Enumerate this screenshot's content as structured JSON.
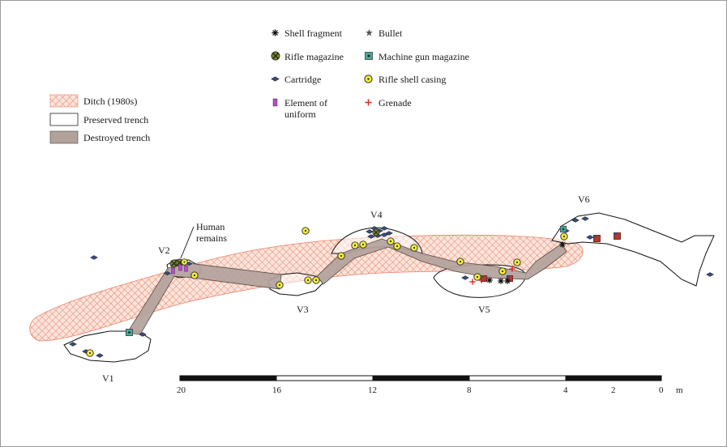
{
  "legend_areas": [
    {
      "key": "ditch",
      "label": "Ditch (1980s)"
    },
    {
      "key": "preserved",
      "label": "Preserved trench"
    },
    {
      "key": "destroyed",
      "label": "Destroyed trench"
    }
  ],
  "legend_finds": {
    "shell_fragment": "Shell fragment",
    "bullet": "Bullet",
    "rifle_magazine": "Rifle magazine",
    "machine_gun_magazine": "Machine gun magazine",
    "cartridge": "Cartridge",
    "rifle_shell_casing": "Rifle shell casing",
    "element_of_uniform_line1": "Element of",
    "element_of_uniform_line2": "uniform",
    "grenade": "Grenade"
  },
  "positions": {
    "v1": "V1",
    "v2": "V2",
    "v3": "V3",
    "v4": "V4",
    "v5": "V5",
    "v6": "V6",
    "human_remains_line1": "Human",
    "human_remains_line2": "remains"
  },
  "scale_bar": {
    "ticks": [
      "20",
      "16",
      "12",
      "8",
      "4",
      "2",
      "0"
    ],
    "unit": "m"
  },
  "colors": {
    "ditch_hatch": "#e8826a",
    "ditch_fill": "#fbe4da",
    "destroyed_fill": "#b3a29c",
    "casing_yellow": "#f2ee3a",
    "cartridge_blue": "#3b4c7a",
    "magazine_green": "#7a8a2a",
    "mg_teal": "#4aa89a",
    "uniform_purple": "#b24fc2",
    "grenade_red": "#e8231c",
    "box_red": "#b23a2e"
  }
}
